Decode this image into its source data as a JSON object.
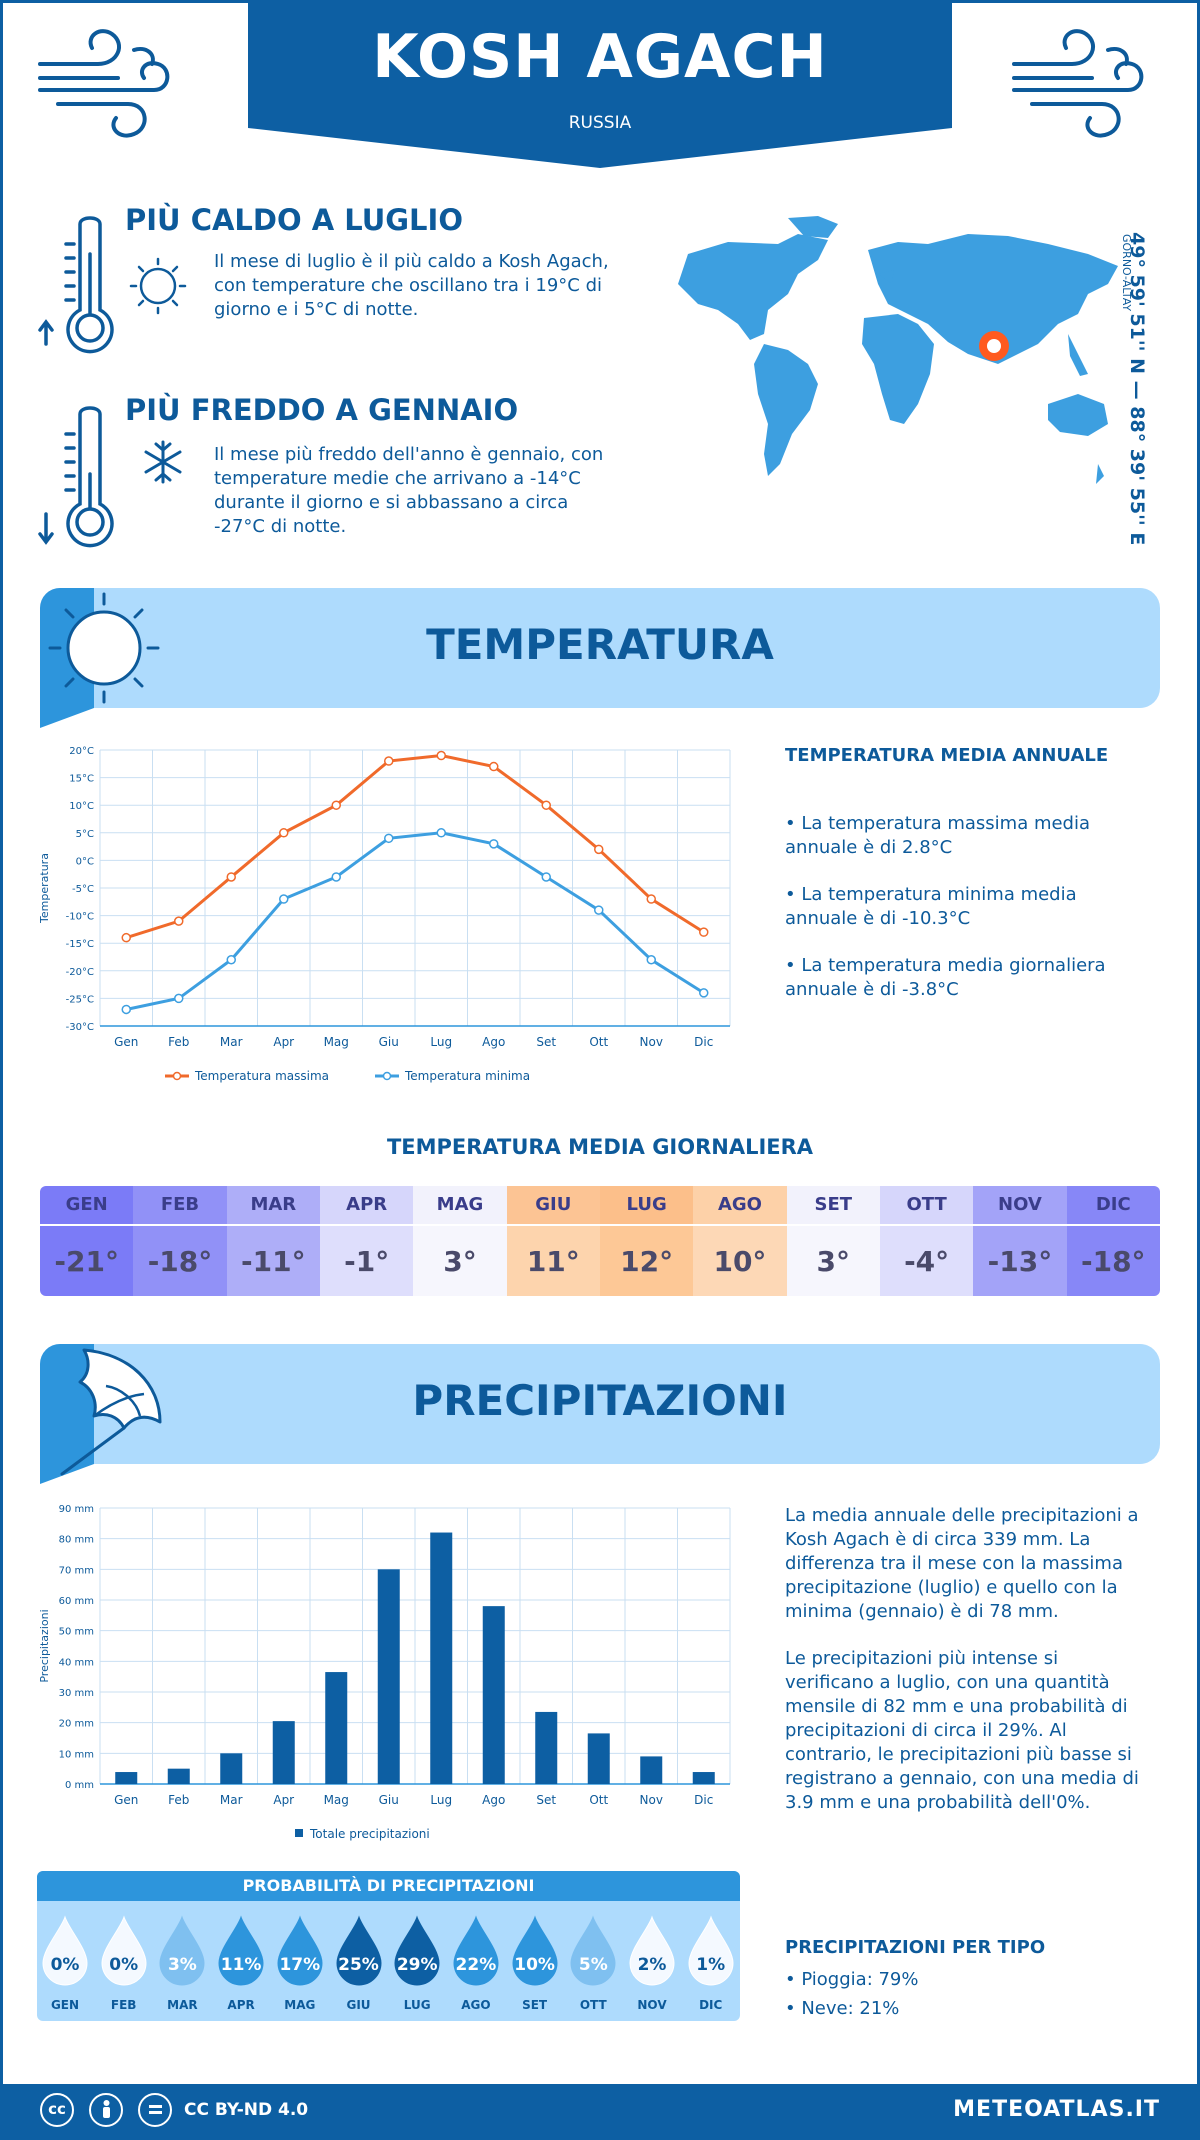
{
  "header": {
    "city": "KOSH AGACH",
    "country": "RUSSIA"
  },
  "facts": {
    "hot": {
      "title": "PIÙ CALDO A LUGLIO",
      "text": "Il mese di luglio è il più caldo a Kosh Agach, con temperature che oscillano tra i 19°C di giorno e i 5°C di notte."
    },
    "cold": {
      "title": "PIÙ FREDDO A GENNAIO",
      "text": "Il mese più freddo dell'anno è gennaio, con temperature medie che arrivano a -14°C durante il giorno e si abbassano a circa -27°C di notte."
    }
  },
  "location": {
    "coords": "49° 59' 51'' N — 88° 39' 55'' E",
    "region": "GORNO-ALTAY"
  },
  "temperature": {
    "banner_title": "TEMPERATURA",
    "annual_title": "TEMPERATURA MEDIA ANNUALE",
    "annual_max": "• La temperatura massima media annuale è di 2.8°C",
    "annual_min": "• La temperatura minima media annuale è di -10.3°C",
    "annual_daily": "• La temperatura media giornaliera annuale è di -3.8°C",
    "daily_title": "TEMPERATURA MEDIA GIORNALIERA",
    "months_upper": [
      "GEN",
      "FEB",
      "MAR",
      "APR",
      "MAG",
      "GIU",
      "LUG",
      "AGO",
      "SET",
      "OTT",
      "NOV",
      "DIC"
    ],
    "daily_values": [
      "-21°",
      "-18°",
      "-11°",
      "-1°",
      "3°",
      "11°",
      "12°",
      "10°",
      "3°",
      "-4°",
      "-13°",
      "-18°"
    ],
    "header_colors": [
      "#7b7bf7",
      "#9191f7",
      "#aeaef8",
      "#d6d6fb",
      "#f2f2fc",
      "#fcc494",
      "#fcbf8a",
      "#fdd1a8",
      "#f2f2fc",
      "#d6d6fb",
      "#a3a3f8",
      "#8787f7"
    ],
    "value_colors": [
      "#7b7bf7",
      "#9191f7",
      "#aeaef8",
      "#dedefc",
      "#f6f6fd",
      "#fdd4ad",
      "#fdc896",
      "#fdd8b6",
      "#f6f6fd",
      "#dedefc",
      "#a3a3f8",
      "#8787f7"
    ]
  },
  "chart_data": [
    {
      "type": "line",
      "categories": [
        "Gen",
        "Feb",
        "Mar",
        "Apr",
        "Mag",
        "Giu",
        "Lug",
        "Ago",
        "Set",
        "Ott",
        "Nov",
        "Dic"
      ],
      "series": [
        {
          "name": "Temperatura massima",
          "color": "#f06a2b",
          "values": [
            -14,
            -11,
            -3,
            5,
            10,
            18,
            19,
            17,
            10,
            2,
            -7,
            -13
          ]
        },
        {
          "name": "Temperatura minima",
          "color": "#3d9fe0",
          "values": [
            -27,
            -25,
            -18,
            -7,
            -3,
            4,
            5,
            3,
            -3,
            -9,
            -18,
            -24
          ]
        }
      ],
      "ylabel": "Temperatura",
      "yticks": [
        "20°C",
        "15°C",
        "10°C",
        "5°C",
        "0°C",
        "-5°C",
        "-10°C",
        "-15°C",
        "-20°C",
        "-25°C",
        "-30°C"
      ],
      "ylim": [
        -30,
        20
      ],
      "grid": true,
      "legend": "bottom"
    },
    {
      "type": "bar",
      "categories": [
        "Gen",
        "Feb",
        "Mar",
        "Apr",
        "Mag",
        "Giu",
        "Lug",
        "Ago",
        "Set",
        "Ott",
        "Nov",
        "Dic"
      ],
      "series": [
        {
          "name": "Totale precipitazioni",
          "color": "#0d5fa3",
          "values": [
            3.9,
            5,
            10,
            20.5,
            36.5,
            70,
            82,
            58,
            23.5,
            16.5,
            9,
            3.9
          ]
        }
      ],
      "ylabel": "Precipitazioni",
      "yticks": [
        "90 mm",
        "80 mm",
        "70 mm",
        "60 mm",
        "50 mm",
        "40 mm",
        "30 mm",
        "20 mm",
        "10 mm",
        "0 mm"
      ],
      "ylim": [
        0,
        90
      ],
      "grid": true,
      "legend": "bottom"
    }
  ],
  "precipitation": {
    "banner_title": "PRECIPITAZIONI",
    "text1": "La media annuale delle precipitazioni a Kosh Agach è di circa 339 mm. La differenza tra il mese con la massima precipitazione (luglio) e quello con la minima (gennaio) è di 78 mm.",
    "text2": "Le precipitazioni più intense si verificano a luglio, con una quantità mensile di 82 mm e una probabilità di precipitazioni di circa il 29%. Al contrario, le precipitazioni più basse si registrano a gennaio, con una media di 3.9 mm e una probabilità dell'0%.",
    "prob_title": "PROBABILITÀ DI PRECIPITAZIONI",
    "probabilities": [
      "0%",
      "0%",
      "3%",
      "11%",
      "17%",
      "25%",
      "29%",
      "22%",
      "10%",
      "5%",
      "2%",
      "1%"
    ],
    "prob_fraction": [
      0,
      0,
      0.03,
      0.11,
      0.17,
      0.25,
      0.29,
      0.22,
      0.1,
      0.05,
      0.02,
      0.01
    ],
    "type_title": "PRECIPITAZIONI PER TIPO",
    "rain": "• Pioggia: 79%",
    "snow": "• Neve: 21%"
  },
  "footer": {
    "license": "CC BY-ND 4.0",
    "site": "METEOATLAS.IT"
  },
  "colors": {
    "brand": "#0d5fa3",
    "accent": "#2d95dc",
    "light": "#aedbfd",
    "map": "#3d9fe0",
    "marker": "#ff5a1f"
  }
}
